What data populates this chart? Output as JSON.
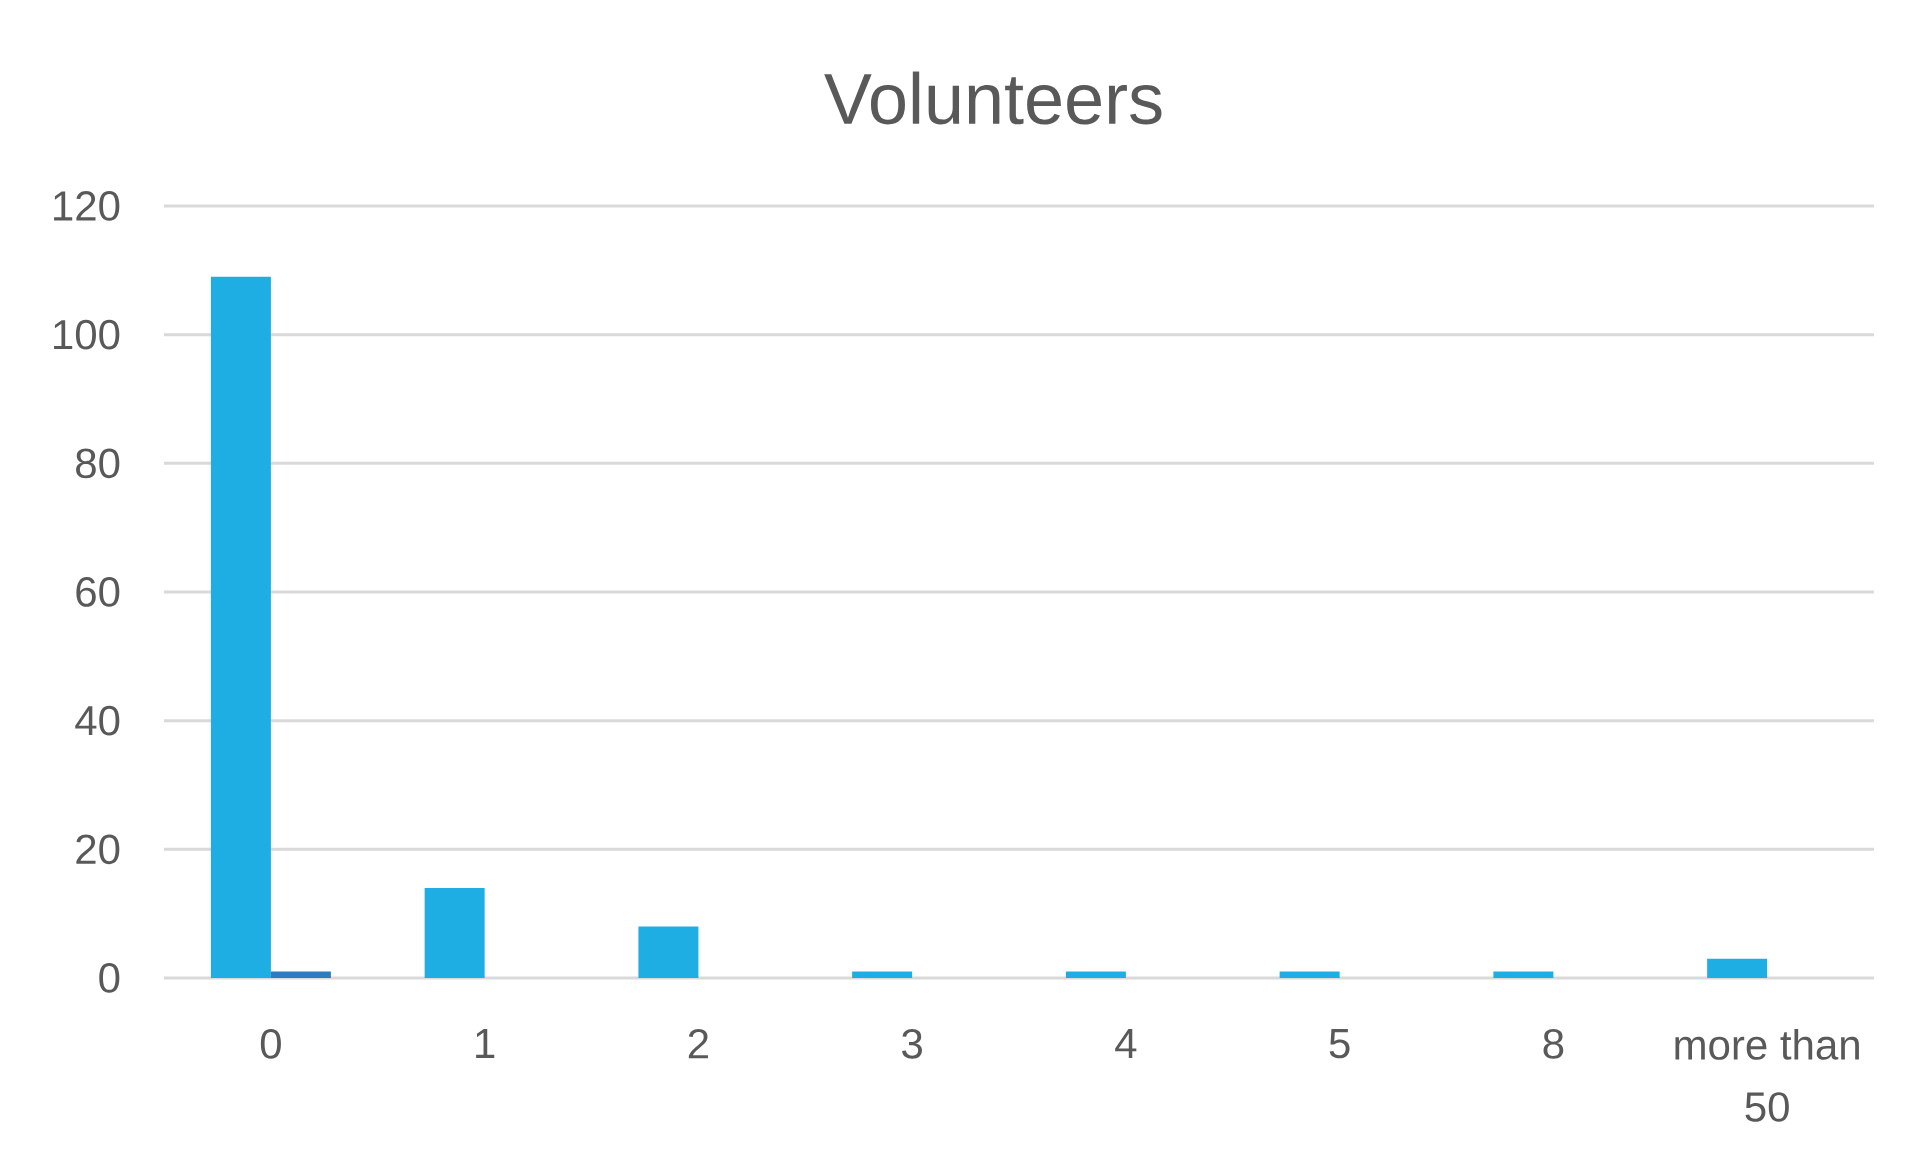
{
  "chart_data": {
    "type": "bar",
    "title": "Volunteers",
    "categories": [
      "0",
      "1",
      "2",
      "3",
      "4",
      "5",
      "8",
      "more than 50"
    ],
    "series": [
      {
        "color": "#1faee3",
        "values": [
          109,
          14,
          8,
          1,
          1,
          1,
          1,
          3
        ]
      },
      {
        "color": "#2e7cc0",
        "values": [
          1,
          null,
          null,
          null,
          null,
          null,
          null,
          null
        ]
      }
    ],
    "ylim": [
      0,
      120
    ],
    "yticks": [
      0,
      20,
      40,
      60,
      80,
      100,
      120
    ],
    "grid": "y"
  }
}
